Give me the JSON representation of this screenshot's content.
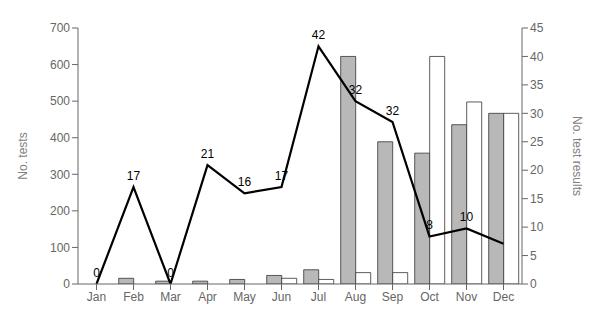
{
  "chart_data": {
    "type": "bar",
    "categories": [
      "Jan",
      "Feb",
      "Mar",
      "Apr",
      "May",
      "Jun",
      "Jul",
      "Aug",
      "Sep",
      "Oct",
      "Nov",
      "Dec"
    ],
    "series": [
      {
        "type": "bar",
        "axis": "y2",
        "color": "#b8b8b8",
        "values": [
          0,
          1,
          0.5,
          0.5,
          0.8,
          1.5,
          2.5,
          40,
          25,
          23,
          28,
          30
        ]
      },
      {
        "type": "bar",
        "axis": "y2",
        "color": "#ffffff",
        "values": [
          0,
          0,
          0,
          0,
          0,
          1.0,
          0.8,
          2,
          2,
          40,
          32,
          30
        ]
      },
      {
        "type": "line",
        "axis": "y",
        "color": "#000000",
        "values": [
          0,
          265,
          0,
          325,
          248,
          265,
          650,
          500,
          443,
          130,
          152,
          110
        ]
      }
    ],
    "annotations": [
      {
        "x": "Jan",
        "text": "0"
      },
      {
        "x": "Feb",
        "text": "17"
      },
      {
        "x": "Mar",
        "text": "0"
      },
      {
        "x": "Apr",
        "text": "21"
      },
      {
        "x": "May",
        "text": "16"
      },
      {
        "x": "Jun",
        "text": "17"
      },
      {
        "x": "Jul",
        "text": "42"
      },
      {
        "x": "Aug",
        "text": "32"
      },
      {
        "x": "Sep",
        "text": "32"
      },
      {
        "x": "Oct",
        "text": "8"
      },
      {
        "x": "Nov",
        "text": "10"
      }
    ],
    "ylabel": "No. tests",
    "y2label": "No. test results",
    "ylim": [
      0,
      700
    ],
    "yticks": [
      0,
      100,
      200,
      300,
      400,
      500,
      600,
      700
    ],
    "y2lim": [
      0,
      45
    ],
    "y2ticks": [
      0,
      5,
      10,
      15,
      20,
      25,
      30,
      35,
      40,
      45
    ],
    "grid": false
  }
}
